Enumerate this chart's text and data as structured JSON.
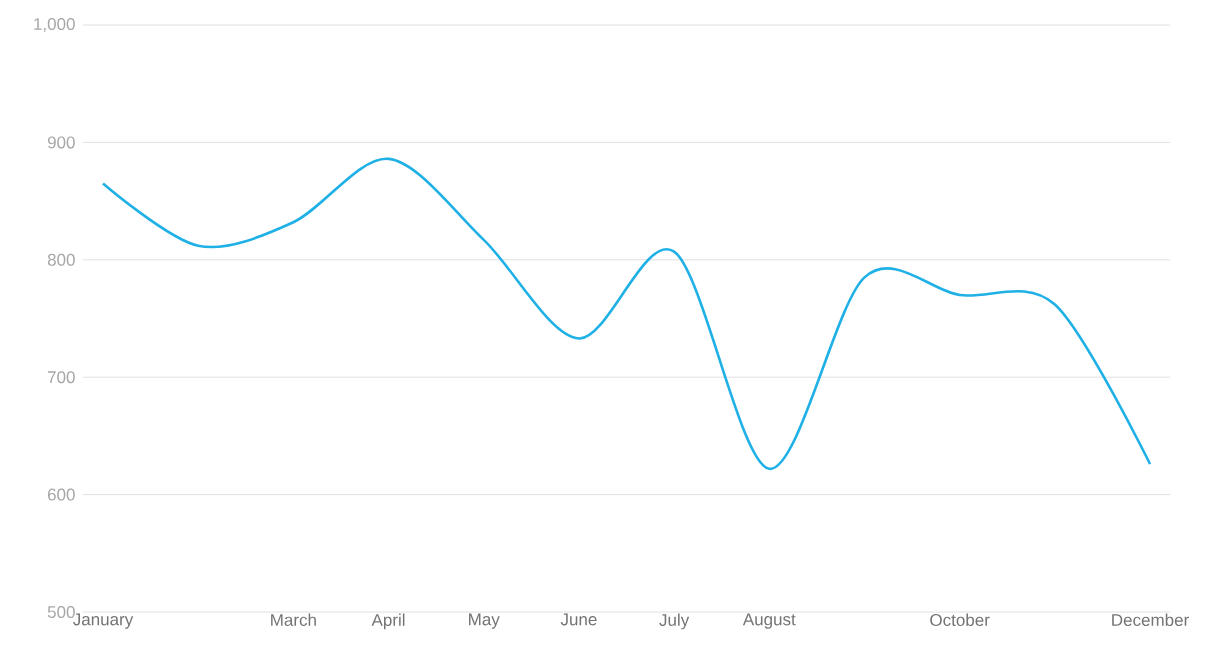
{
  "chart_data": {
    "type": "line",
    "categories": [
      "January",
      null,
      "March",
      "April",
      "May",
      "June",
      "July",
      "August",
      null,
      "October",
      null,
      "December"
    ],
    "series": [
      {
        "color": "#1fb0e6",
        "values": [
          865,
          812,
          832,
          886,
          817,
          733,
          807,
          622,
          785,
          770,
          762,
          626
        ]
      }
    ],
    "ylim": [
      500,
      1000
    ],
    "yticks": [
      500,
      600,
      700,
      800,
      900,
      {
        "value": 1000,
        "label": "1,000"
      }
    ],
    "grid": "y",
    "marker": "none",
    "line_style": "solid"
  }
}
